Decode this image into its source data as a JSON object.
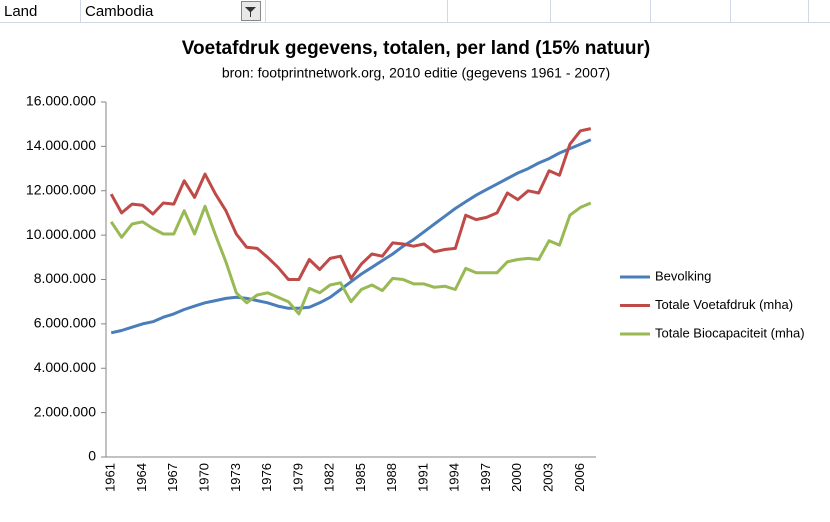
{
  "header": {
    "label": "Land",
    "value": "Cambodia"
  },
  "chart_data": {
    "type": "line",
    "title": "Voetafdruk gegevens, totalen, per land (15% natuur)",
    "subtitle": "bron: footprintnetwork.org, 2010 editie (gegevens 1961 - 2007)",
    "categories": [
      "1961",
      null,
      null,
      "1964",
      null,
      null,
      "1967",
      null,
      null,
      "1970",
      null,
      null,
      "1973",
      null,
      null,
      "1976",
      null,
      null,
      "1979",
      null,
      null,
      "1982",
      null,
      null,
      "1985",
      null,
      null,
      "1988",
      null,
      null,
      "1991",
      null,
      null,
      "1994",
      null,
      null,
      "1997",
      null,
      null,
      "2000",
      null,
      null,
      "2003",
      null,
      null,
      "2006",
      null
    ],
    "series": [
      {
        "name": "Bevolking",
        "color": "#4a7ebb",
        "values": [
          5600000,
          5700000,
          5850000,
          6000000,
          6100000,
          6300000,
          6450000,
          6650000,
          6800000,
          6950000,
          7050000,
          7150000,
          7200000,
          7150000,
          7050000,
          6950000,
          6800000,
          6700000,
          6700000,
          6750000,
          6950000,
          7200000,
          7550000,
          7900000,
          8250000,
          8550000,
          8850000,
          9150000,
          9500000,
          9800000,
          10150000,
          10500000,
          10850000,
          11200000,
          11500000,
          11800000,
          12050000,
          12300000,
          12550000,
          12800000,
          13000000,
          13250000,
          13450000,
          13700000,
          13900000,
          14100000,
          14300000
        ]
      },
      {
        "name": "Totale Voetafdruk (mha)",
        "color": "#be4b48",
        "values": [
          11850000,
          11000000,
          11400000,
          11350000,
          10950000,
          11450000,
          11400000,
          12450000,
          11700000,
          12750000,
          11850000,
          11100000,
          10050000,
          9450000,
          9400000,
          9000000,
          8550000,
          8000000,
          8000000,
          8900000,
          8450000,
          8950000,
          9050000,
          8050000,
          8700000,
          9150000,
          9050000,
          9650000,
          9600000,
          9500000,
          9600000,
          9250000,
          9350000,
          9400000,
          10900000,
          10700000,
          10800000,
          11000000,
          11900000,
          11600000,
          12000000,
          11900000,
          12900000,
          12700000,
          14100000,
          14700000,
          14800000
        ]
      },
      {
        "name": "Totale Biocapaciteit  (mha)",
        "color": "#98b954",
        "values": [
          10600000,
          9900000,
          10500000,
          10600000,
          10300000,
          10050000,
          10050000,
          11100000,
          10050000,
          11300000,
          10000000,
          8800000,
          7400000,
          6950000,
          7300000,
          7400000,
          7200000,
          7000000,
          6450000,
          7600000,
          7400000,
          7750000,
          7850000,
          7000000,
          7550000,
          7750000,
          7500000,
          8050000,
          8000000,
          7800000,
          7800000,
          7650000,
          7700000,
          7550000,
          8500000,
          8300000,
          8300000,
          8300000,
          8800000,
          8900000,
          8950000,
          8900000,
          9750000,
          9550000,
          10900000,
          11250000,
          11450000
        ]
      }
    ],
    "ylim": [
      0,
      16000000
    ],
    "yticks": [
      0,
      {
        "value": 2000000,
        "label": "2.000.000"
      },
      {
        "value": 4000000,
        "label": "4.000.000"
      },
      {
        "value": 6000000,
        "label": "6.000.000"
      },
      {
        "value": 8000000,
        "label": "8.000.000"
      },
      {
        "value": 10000000,
        "label": "10.000.000"
      },
      {
        "value": 12000000,
        "label": "12.000.000"
      },
      {
        "value": 14000000,
        "label": "14.000.000"
      },
      {
        "value": 16000000,
        "label": "16.000.000"
      }
    ],
    "grid": false,
    "legend": "right"
  }
}
